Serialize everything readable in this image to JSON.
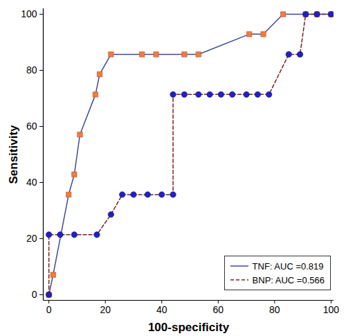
{
  "chart_data": {
    "type": "line",
    "x_label": "100-specificity",
    "y_label": "Sensitivity",
    "xlim": [
      -2,
      101
    ],
    "ylim": [
      -2,
      102
    ],
    "xticks": [
      0,
      20,
      40,
      60,
      80,
      100
    ],
    "yticks": [
      0,
      20,
      40,
      60,
      80,
      100
    ],
    "grid": false,
    "legend": "bottom-right",
    "series": [
      {
        "name": "TNF: AUC =0.819",
        "color": "#3b4a9c",
        "marker": "square",
        "line_style": "solid",
        "x": [
          0,
          1.5,
          7,
          9,
          11,
          16.5,
          18,
          22,
          33,
          38,
          48,
          53,
          71,
          76,
          83,
          91,
          95,
          100
        ],
        "values": [
          0,
          7.1,
          35.7,
          42.9,
          57.1,
          71.4,
          78.6,
          85.7,
          85.7,
          85.7,
          85.7,
          85.7,
          92.9,
          92.9,
          100,
          100,
          100,
          100
        ]
      },
      {
        "name": "BNP: AUC =0.566",
        "color": "#7a1f1f",
        "marker": "circle",
        "line_style": "dashed",
        "x": [
          0,
          0,
          4,
          9,
          17,
          22,
          26,
          30,
          35,
          40,
          44,
          44,
          48,
          53,
          57,
          61,
          65,
          70,
          74,
          78,
          85,
          89,
          91,
          95,
          100
        ],
        "values": [
          0,
          21.4,
          21.4,
          21.4,
          21.4,
          28.6,
          35.7,
          35.7,
          35.7,
          35.7,
          35.7,
          71.4,
          71.4,
          71.4,
          71.4,
          71.4,
          71.4,
          71.4,
          71.4,
          71.4,
          85.7,
          85.7,
          100,
          100,
          100
        ]
      }
    ]
  }
}
